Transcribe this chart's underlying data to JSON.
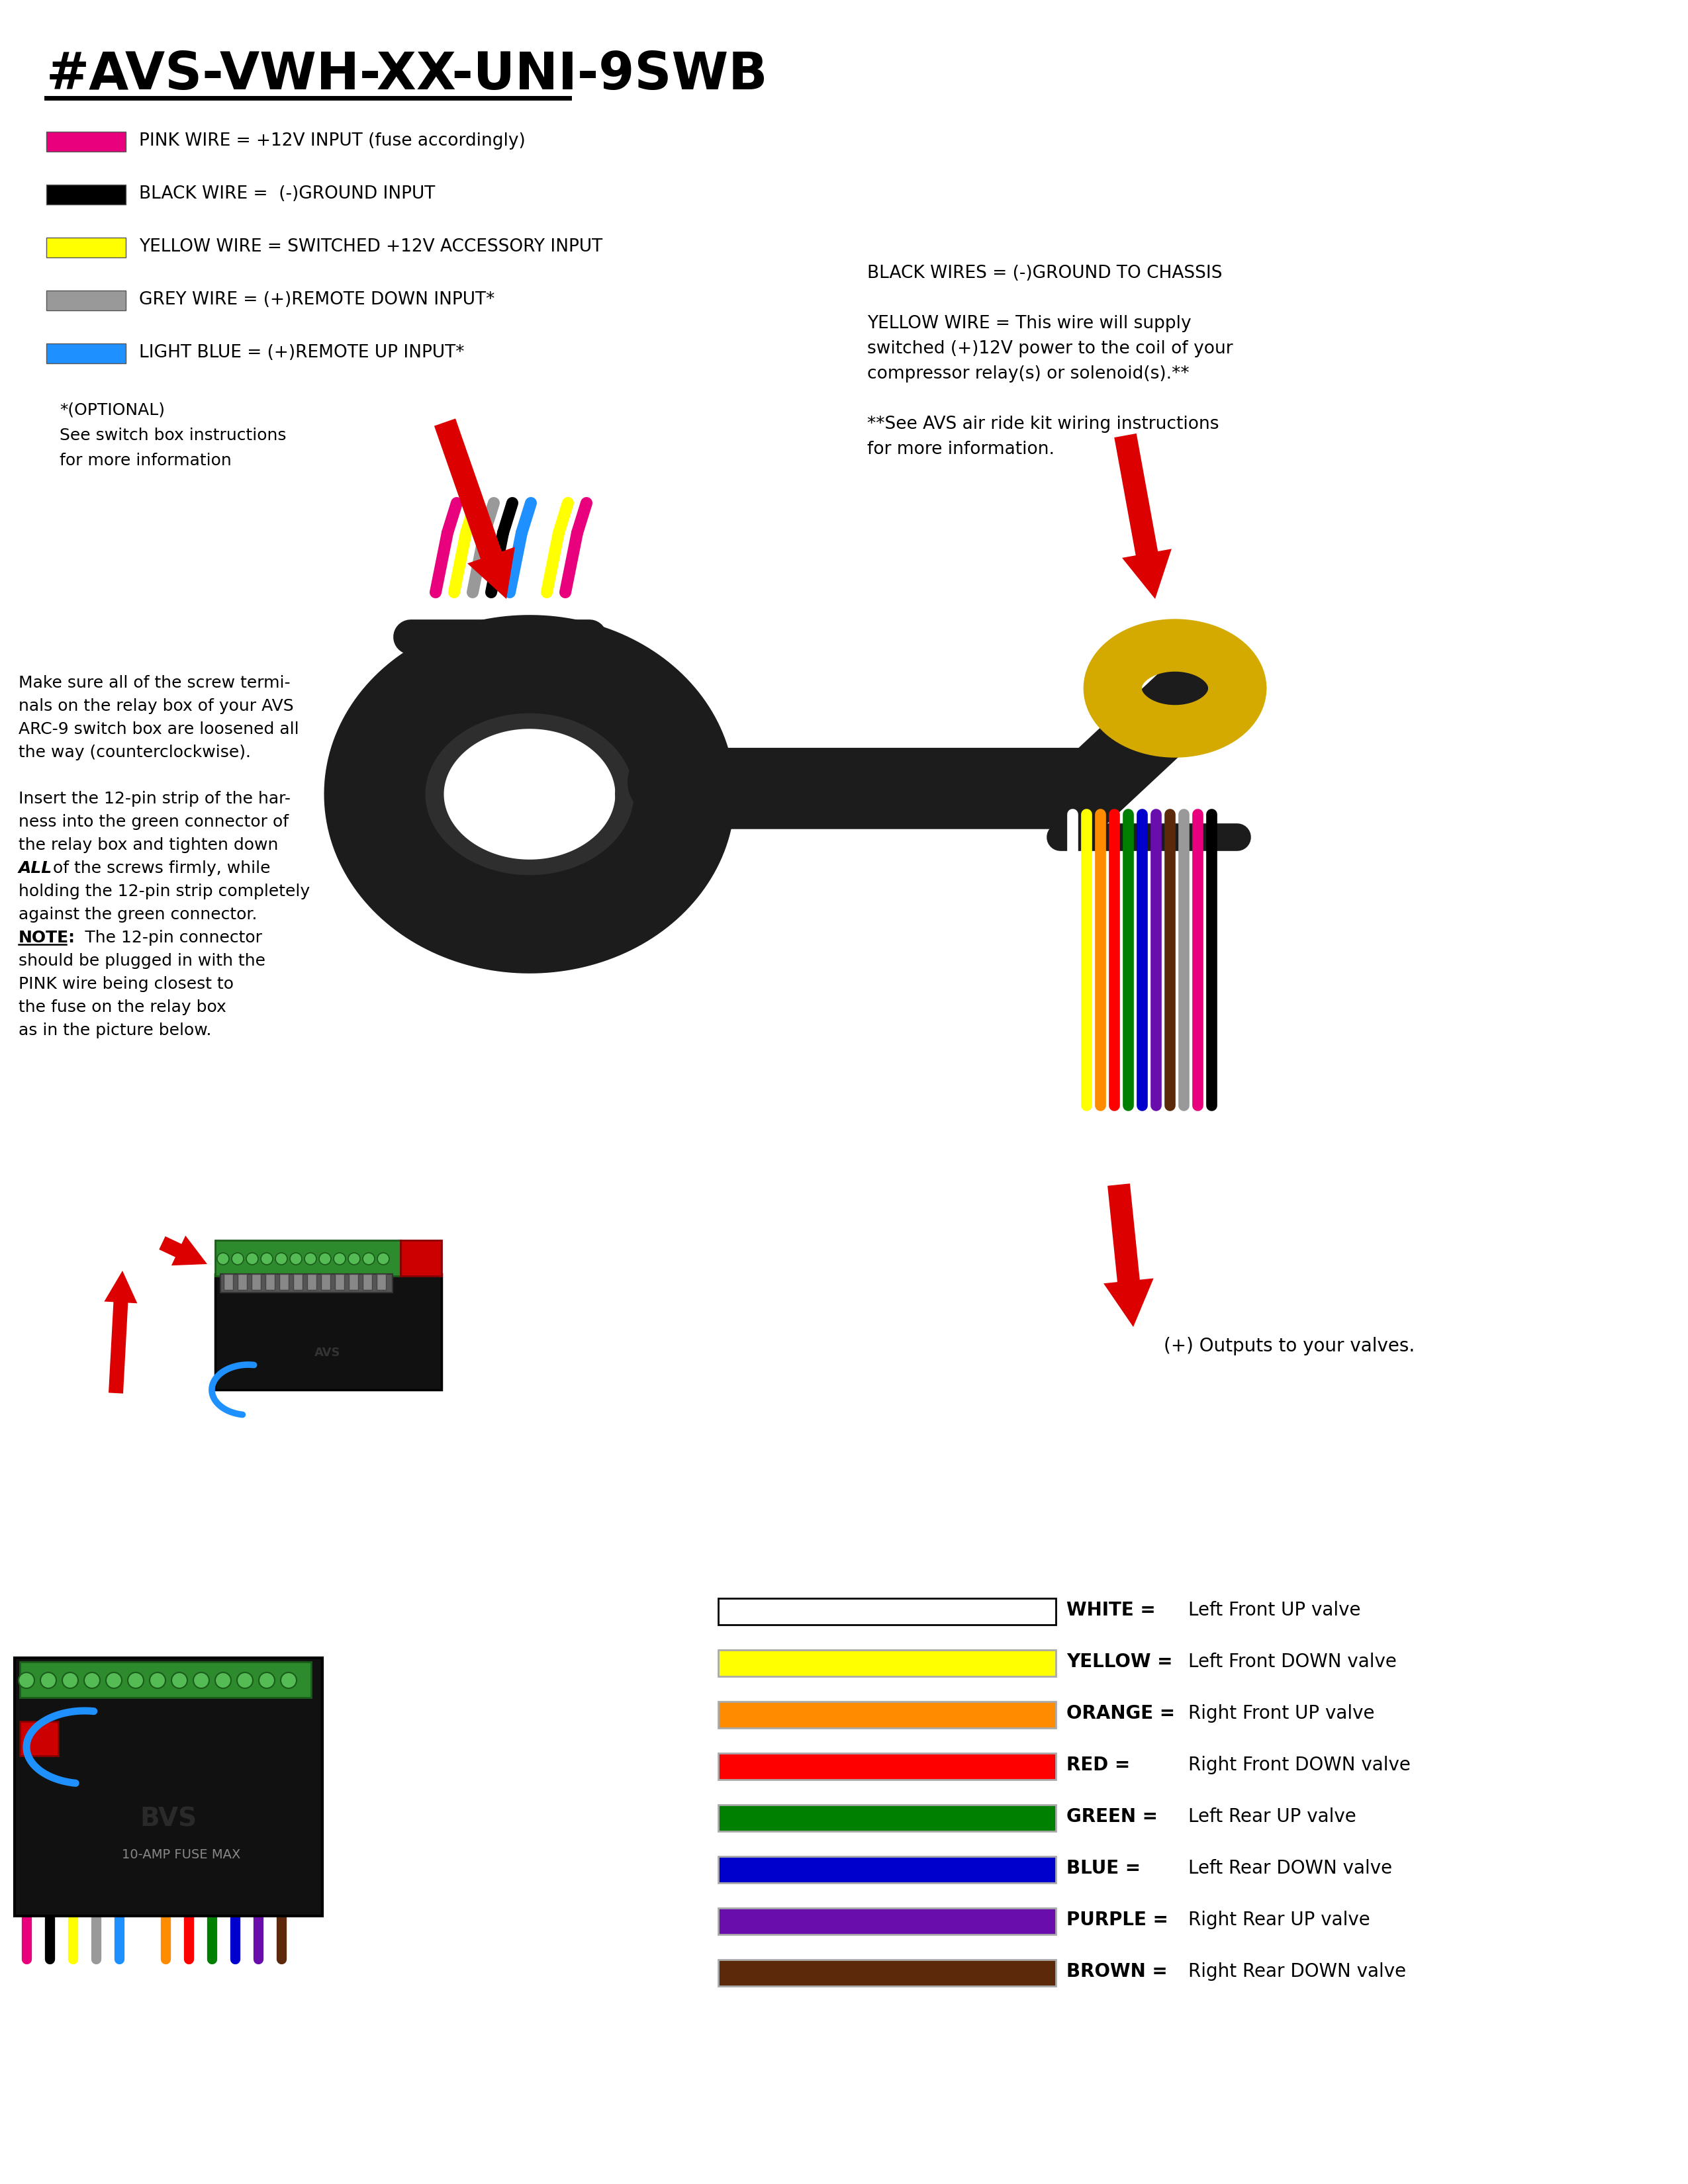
{
  "title": "#AVS-VWH-XX-UNI-9SWB",
  "background_color": "#ffffff",
  "wire_legend_left": [
    {
      "color": "#e8007d",
      "label": "PINK WIRE = +12V INPUT (fuse accordingly)"
    },
    {
      "color": "#000000",
      "label": "BLACK WIRE =  (-)GROUND INPUT"
    },
    {
      "color": "#ffff00",
      "label": "YELLOW WIRE = SWITCHED +12V ACCESSORY INPUT"
    },
    {
      "color": "#999999",
      "label": "GREY WIRE = (+)REMOTE DOWN INPUT*"
    },
    {
      "color": "#1e90ff",
      "label": "LIGHT BLUE = (+)REMOTE UP INPUT*"
    }
  ],
  "optional_note_lines": [
    "*(OPTIONAL)",
    "See switch box instructions",
    "for more information"
  ],
  "right_top_text_lines": [
    "BLACK WIRES = (-)GROUND TO CHASSIS",
    "",
    "YELLOW WIRE = This wire will supply",
    "switched (+)12V power to the coil of your",
    "compressor relay(s) or solenoid(s).**",
    "",
    "**See AVS air ride kit wiring instructions",
    "for more information."
  ],
  "output_label": "(+) Outputs to your valves.",
  "left_instruction_lines": [
    {
      "text": "Make sure all of the screw termi-",
      "bold": false,
      "italic": false,
      "underline": false
    },
    {
      "text": "nals on the relay box of your AVS",
      "bold": false,
      "italic": false,
      "underline": false
    },
    {
      "text": "ARC-9 switch box are loosened all",
      "bold": false,
      "italic": false,
      "underline": false
    },
    {
      "text": "the way (counterclockwise).",
      "bold": false,
      "italic": false,
      "underline": false
    },
    {
      "text": "",
      "bold": false,
      "italic": false,
      "underline": false
    },
    {
      "text": "Insert the 12-pin strip of the har-",
      "bold": false,
      "italic": false,
      "underline": false
    },
    {
      "text": "ness into the green connector of",
      "bold": false,
      "italic": false,
      "underline": false
    },
    {
      "text": "the relay box and tighten down",
      "bold": false,
      "italic": false,
      "underline": false
    },
    {
      "text": "ALL_BOLD of the screws firmly, while",
      "bold": false,
      "italic": false,
      "underline": false
    },
    {
      "text": "holding the 12-pin strip completely",
      "bold": false,
      "italic": false,
      "underline": false
    },
    {
      "text": "against the green connector.",
      "bold": false,
      "italic": false,
      "underline": false
    },
    {
      "text": "NOTE_UNDER:  The 12-pin connector",
      "bold": false,
      "italic": false,
      "underline": false
    },
    {
      "text": "should be plugged in with the",
      "bold": false,
      "italic": false,
      "underline": false
    },
    {
      "text": "PINK wire being closest to",
      "bold": false,
      "italic": false,
      "underline": false
    },
    {
      "text": "the fuse on the relay box",
      "bold": false,
      "italic": false,
      "underline": false
    },
    {
      "text": "as in the picture below.",
      "bold": false,
      "italic": false,
      "underline": false
    }
  ],
  "wire_legend_bottom": [
    {
      "color": "#ffffff",
      "border": "#000000",
      "label_left": "WHITE =",
      "label_right": "Left Front UP valve"
    },
    {
      "color": "#ffff00",
      "border": "#aaaaaa",
      "label_left": "YELLOW =",
      "label_right": "Left Front DOWN valve"
    },
    {
      "color": "#ff8c00",
      "border": "#aaaaaa",
      "label_left": "ORANGE =",
      "label_right": "Right Front UP valve"
    },
    {
      "color": "#ff0000",
      "border": "#aaaaaa",
      "label_left": "RED =",
      "label_right": "Right Front DOWN valve"
    },
    {
      "color": "#008000",
      "border": "#aaaaaa",
      "label_left": "GREEN =",
      "label_right": "Left Rear UP valve"
    },
    {
      "color": "#0000cc",
      "border": "#aaaaaa",
      "label_left": "BLUE =",
      "label_right": "Left Rear DOWN valve"
    },
    {
      "color": "#6a0dad",
      "border": "#aaaaaa",
      "label_left": "PURPLE =",
      "label_right": "Right Rear UP valve"
    },
    {
      "color": "#5c2a0a",
      "border": "#aaaaaa",
      "label_left": "BROWN =",
      "label_right": "Right Rear DOWN valve"
    }
  ],
  "top_wire_colors": [
    "#e8007d",
    "#ffff00",
    "#999999",
    "#000000",
    "#1e90ff",
    "#ffffff",
    "#ffff00",
    "#e8007d"
  ],
  "valve_wire_colors": [
    "#ffffff",
    "#ffff00",
    "#ff8c00",
    "#ff0000",
    "#008000",
    "#0000cc",
    "#6a0dad",
    "#5c2a0a",
    "#999999",
    "#e8007d",
    "#000000"
  ],
  "relay_wire_colors": [
    "#e8007d",
    "#000000",
    "#ffff00",
    "#999999",
    "#1e90ff",
    "#ffffff",
    "#ff8c00",
    "#ff0000",
    "#008000",
    "#0000cc",
    "#6a0dad",
    "#5c2a0a"
  ]
}
